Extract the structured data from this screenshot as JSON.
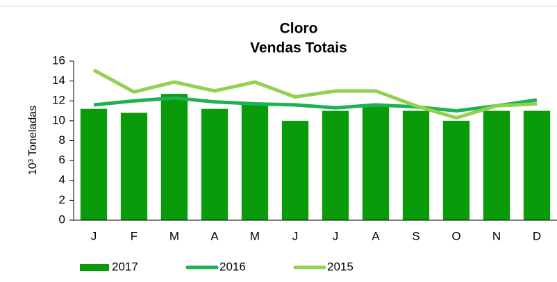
{
  "chart_data": {
    "type": "bar",
    "title": "Cloro",
    "subtitle": "Vendas Totais",
    "y_label": "10³ Toneladas",
    "categories": [
      "J",
      "F",
      "M",
      "A",
      "M",
      "J",
      "J",
      "A",
      "S",
      "O",
      "N",
      "D"
    ],
    "series": [
      {
        "name": "2017",
        "type": "bar",
        "color": "#0a9b0a",
        "values": [
          11.2,
          10.8,
          12.7,
          11.2,
          11.6,
          10.0,
          11.0,
          11.6,
          11.0,
          10.0,
          11.0,
          11.0
        ]
      },
      {
        "name": "2016",
        "type": "line",
        "color": "#1cb254",
        "values": [
          11.6,
          12.0,
          12.3,
          11.9,
          11.7,
          11.6,
          11.3,
          11.6,
          11.4,
          11.0,
          11.5,
          12.1
        ]
      },
      {
        "name": "2015",
        "type": "line",
        "color": "#92d050",
        "values": [
          15.1,
          12.9,
          13.9,
          13.0,
          13.9,
          12.4,
          13.0,
          13.0,
          11.5,
          10.3,
          11.5,
          11.7
        ]
      }
    ],
    "ylim": [
      0,
      16
    ],
    "yticks": [
      0,
      2,
      4,
      6,
      8,
      10,
      12,
      14,
      16
    ],
    "legend": "bottom"
  }
}
